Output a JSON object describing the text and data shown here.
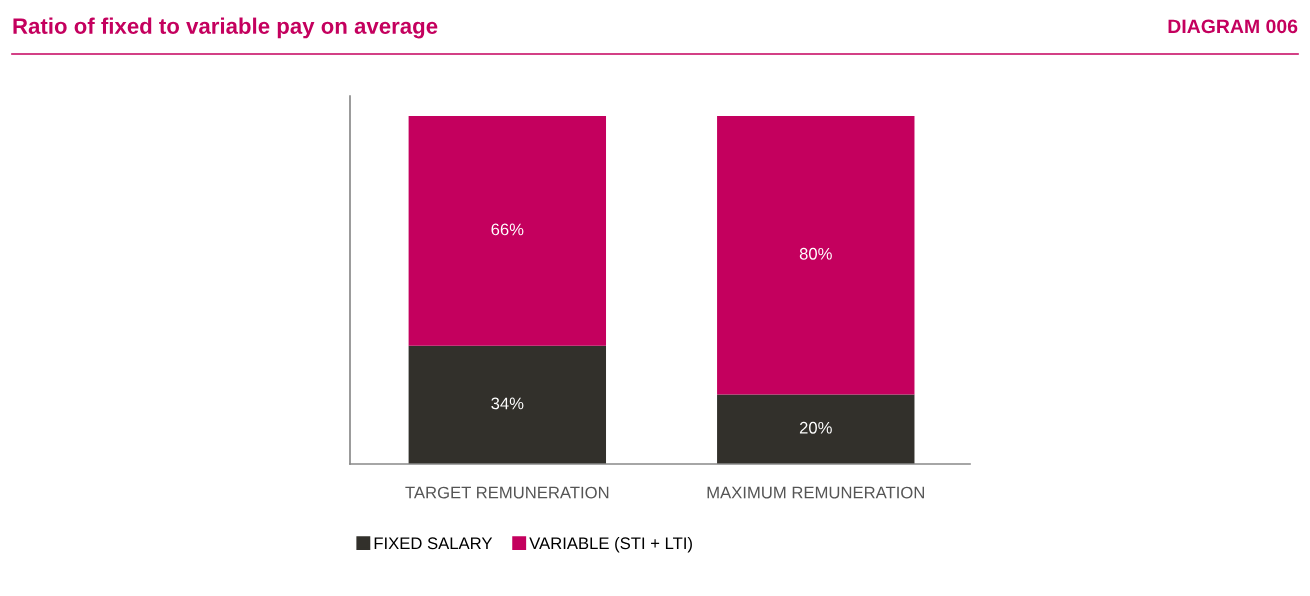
{
  "chart_data": {
    "type": "bar",
    "title": "Ratio of fixed to variable pay on average",
    "annotations": [
      "DIAGRAM 006"
    ],
    "categories": [
      "TARGET REMUNERATION",
      "MAXIMUM REMUNERATION"
    ],
    "stacked": true,
    "legend": "bottom left",
    "grid": false,
    "series": [
      {
        "name": "FIXED SALARY",
        "color": "#32302b",
        "values": [
          34,
          20
        ],
        "value_labels": [
          "34%",
          "20%"
        ]
      },
      {
        "name": "VARIABLE (STI + LTI)",
        "color": "#c4005e",
        "values": [
          66,
          80
        ],
        "value_labels": [
          "66%",
          "80%"
        ]
      }
    ]
  }
}
